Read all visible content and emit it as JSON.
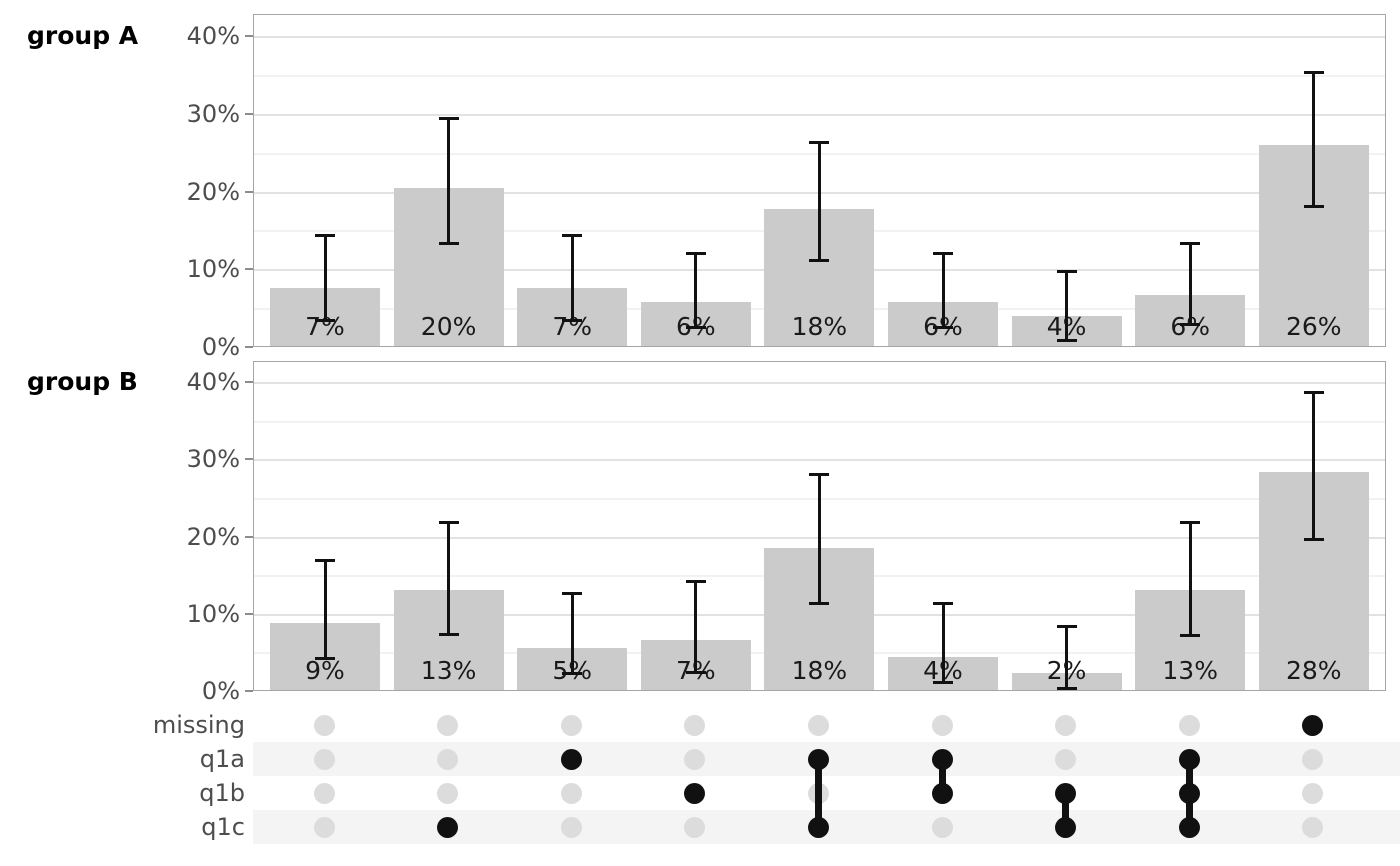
{
  "colors": {
    "bar_fill": "#cbcbcb",
    "panel_border": "#a5a5a5",
    "grid_major": "#e2e2e2",
    "grid_minor": "#f2f2f2",
    "error_bar": "#111111",
    "tick_label": "#4d4d4d",
    "bar_label": "#1a1a1a",
    "matrix_band": "#f4f4f4",
    "dot_empty": "#dcdcdc",
    "dot_filled": "#111111"
  },
  "chart_data": {
    "type": "bar",
    "layout": "missing-data-pattern-upset",
    "categories": [
      "none",
      "q1c",
      "q1a",
      "q1b",
      "q1a+q1c",
      "q1a+q1b",
      "q1b+q1c",
      "q1a+q1b+q1c",
      "missing"
    ],
    "ylim": [
      0,
      42.8
    ],
    "grid": "horizontal-only",
    "yticks": [
      {
        "v": 0,
        "label": "0%"
      },
      {
        "v": 10,
        "label": "10%"
      },
      {
        "v": 20,
        "label": "20%"
      },
      {
        "v": 30,
        "label": "30%"
      },
      {
        "v": 40,
        "label": "40%"
      }
    ],
    "grid_major_at": [
      10,
      20,
      30,
      40
    ],
    "grid_minor_at": [
      5,
      15,
      25,
      35
    ],
    "panels": [
      {
        "title": "group A",
        "values": [
          7.4,
          20.3,
          7.4,
          5.6,
          17.6,
          5.6,
          3.8,
          6.5,
          25.9
        ],
        "labels": [
          "7%",
          "20%",
          "7%",
          "6%",
          "18%",
          "6%",
          "4%",
          "6%",
          "26%"
        ],
        "error_low": [
          3.5,
          13.5,
          3.5,
          2.6,
          11.2,
          2.6,
          1.0,
          3.0,
          18.2
        ],
        "error_high": [
          14.5,
          29.5,
          14.5,
          12.2,
          26.4,
          12.2,
          9.8,
          13.4,
          35.5
        ]
      },
      {
        "title": "group B",
        "values": [
          8.7,
          13.0,
          5.4,
          6.5,
          18.4,
          4.3,
          2.2,
          13.0,
          28.2
        ],
        "labels": [
          "9%",
          "13%",
          "5%",
          "7%",
          "18%",
          "4%",
          "2%",
          "13%",
          "28%"
        ],
        "error_low": [
          4.3,
          7.4,
          2.4,
          2.5,
          11.4,
          1.2,
          0.4,
          7.3,
          19.7
        ],
        "error_high": [
          17.0,
          22.0,
          12.8,
          14.3,
          28.2,
          11.4,
          8.5,
          22.0,
          38.8
        ]
      }
    ],
    "matrix": {
      "rows": [
        "missing",
        "q1a",
        "q1b",
        "q1c"
      ],
      "shaded_rows": [
        "q1a",
        "q1c"
      ],
      "columns": [
        {
          "sets": []
        },
        {
          "sets": [
            "q1c"
          ]
        },
        {
          "sets": [
            "q1a"
          ]
        },
        {
          "sets": [
            "q1b"
          ]
        },
        {
          "sets": [
            "q1a",
            "q1c"
          ]
        },
        {
          "sets": [
            "q1a",
            "q1b"
          ]
        },
        {
          "sets": [
            "q1b",
            "q1c"
          ]
        },
        {
          "sets": [
            "q1a",
            "q1b",
            "q1c"
          ]
        },
        {
          "sets": [
            "missing"
          ]
        }
      ]
    }
  }
}
